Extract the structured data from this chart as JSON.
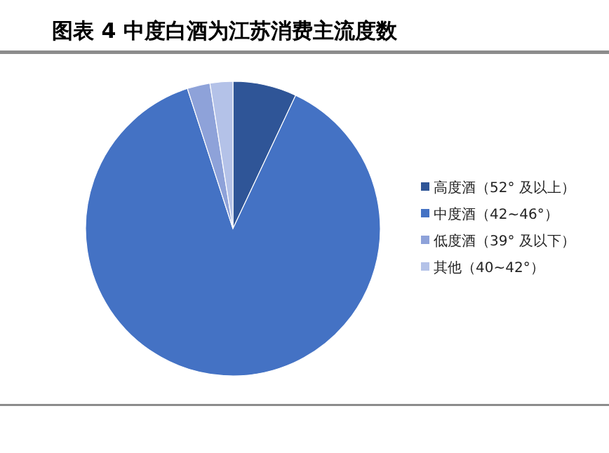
{
  "chart_data": {
    "type": "pie",
    "title": "图表 4 中度白酒为江苏消费主流度数",
    "categories": [
      "高度酒（52° 及以上）",
      "中度酒（42~46°）",
      "低度酒（39° 及以下）",
      "其他（40~42°）"
    ],
    "values": [
      7,
      88,
      2.5,
      2.5
    ],
    "colors": [
      "#2f5597",
      "#4472c4",
      "#8ea2d9",
      "#b4c2e8"
    ],
    "legend": "right"
  }
}
